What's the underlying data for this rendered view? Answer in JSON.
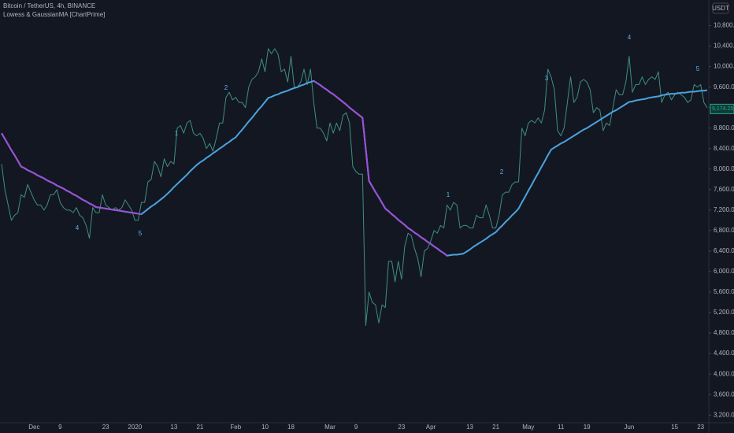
{
  "chart_data": {
    "type": "line",
    "currency": "USDT",
    "last_price": {
      "value": 9174.25,
      "label": "9,174.25"
    },
    "annotations": [
      "4",
      "5",
      "1",
      "2",
      "1",
      "2",
      "3",
      "4",
      "5"
    ],
    "categories": [
      null,
      null,
      null,
      null,
      null,
      null,
      null,
      null,
      null,
      null,
      "Dec",
      null,
      null,
      null,
      null,
      null,
      null,
      null,
      "9",
      null,
      null,
      null,
      null,
      null,
      null,
      null,
      null,
      null,
      null,
      null,
      null,
      null,
      "23",
      null,
      null,
      null,
      null,
      null,
      null,
      null,
      null,
      "2020",
      null,
      null,
      null,
      null,
      null,
      null,
      null,
      null,
      null,
      null,
      null,
      "13",
      null,
      null,
      null,
      null,
      null,
      null,
      null,
      "21",
      null,
      null,
      null,
      null,
      null,
      null,
      null,
      null,
      null,
      null,
      "Feb",
      null,
      null,
      null,
      null,
      null,
      null,
      null,
      null,
      "10",
      null,
      null,
      null,
      null,
      null,
      null,
      null,
      "18",
      null,
      null,
      null,
      null,
      null,
      null,
      null,
      null,
      null,
      null,
      null,
      "Mar",
      null,
      null,
      null,
      null,
      null,
      null,
      null,
      "9",
      null,
      null,
      null,
      null,
      null,
      null,
      null,
      null,
      null,
      null,
      null,
      null,
      null,
      "23",
      null,
      null,
      null,
      null,
      null,
      null,
      null,
      null,
      "Apr",
      null,
      null,
      null,
      null,
      null,
      null,
      null,
      null,
      null,
      null,
      null,
      "13",
      null,
      null,
      null,
      null,
      null,
      null,
      null,
      "21",
      null,
      null,
      null,
      null,
      null,
      null,
      null,
      null,
      null,
      "May",
      null,
      null,
      null,
      null,
      null,
      null,
      null,
      null,
      null,
      "11",
      null,
      null,
      null,
      null,
      null,
      null,
      null,
      "19",
      null,
      null,
      null,
      null,
      null,
      null,
      null,
      null,
      null,
      null,
      null,
      null,
      "Jun",
      null,
      null,
      null,
      null,
      null,
      null,
      null,
      null,
      null,
      null,
      null,
      null,
      null,
      "15",
      null,
      null,
      null,
      null,
      null,
      null,
      null,
      "23",
      null,
      null
    ],
    "series": [
      {
        "name": "Bitcoin / TetherUS, 4h, BINANCE",
        "color": "#3f8f80",
        "values": [
          8100,
          7600,
          7300,
          7000,
          7100,
          7150,
          7500,
          7450,
          7700,
          7550,
          7400,
          7300,
          7300,
          7200,
          7300,
          7500,
          7500,
          7600,
          7350,
          7250,
          7200,
          7200,
          7150,
          7250,
          7100,
          7050,
          6900,
          6650,
          7250,
          7150,
          7150,
          7500,
          7300,
          7250,
          7200,
          7250,
          7200,
          7250,
          7400,
          7300,
          7200,
          7000,
          7000,
          7350,
          7350,
          7750,
          7800,
          8150,
          8050,
          7850,
          8200,
          8050,
          8150,
          8100,
          8800,
          8850,
          8700,
          8900,
          8950,
          8700,
          8650,
          8700,
          8600,
          8400,
          8500,
          8350,
          8600,
          8900,
          8900,
          9400,
          9500,
          9350,
          9400,
          9300,
          9300,
          9200,
          9600,
          9750,
          9800,
          9900,
          10150,
          9900,
          10350,
          10250,
          10350,
          10250,
          9900,
          9950,
          9700,
          10200,
          9600,
          9600,
          9700,
          9950,
          9650,
          9950,
          9300,
          8800,
          8800,
          8700,
          8550,
          8900,
          8700,
          8900,
          8750,
          9050,
          9100,
          8900,
          8050,
          7950,
          7900,
          7900,
          4950,
          5600,
          5400,
          5350,
          5000,
          5350,
          5300,
          6200,
          6200,
          5800,
          6200,
          5850,
          6500,
          6750,
          6700,
          6450,
          6250,
          5900,
          6400,
          6450,
          6600,
          6800,
          6750,
          6900,
          6850,
          7300,
          7200,
          7350,
          7300,
          6850,
          6900,
          6900,
          6850,
          6850,
          7100,
          7050,
          7050,
          7300,
          7100,
          6850,
          6850,
          7100,
          7500,
          7550,
          7550,
          7700,
          7750,
          7750,
          8800,
          8650,
          8900,
          8950,
          8900,
          9000,
          8900,
          9150,
          9950,
          9800,
          9550,
          8750,
          8650,
          8800,
          9300,
          9800,
          9300,
          9400,
          9700,
          9750,
          9700,
          9550,
          9100,
          9200,
          9150,
          8750,
          8900,
          8850,
          9200,
          9550,
          9450,
          9450,
          9700,
          10200,
          9500,
          9650,
          9650,
          9800,
          9650,
          9750,
          9800,
          9750,
          9900,
          9300,
          9450,
          9500,
          9350,
          9450,
          9500,
          9450,
          9400,
          9300,
          9350,
          9650,
          9600,
          9650,
          9300,
          9200
        ]
      },
      {
        "name": "Lowess & GaussianMA [ChartPrime]",
        "color": "#4aa3df",
        "down_color": "#9f4fd8",
        "values": [
          8700,
          8590,
          8480,
          8370,
          8270,
          8160,
          8050,
          8020,
          7980,
          7950,
          7920,
          7880,
          7850,
          7820,
          7780,
          7750,
          7720,
          7680,
          7650,
          7620,
          7580,
          7550,
          7510,
          7480,
          7440,
          7400,
          7370,
          7330,
          7300,
          7260,
          7250,
          7240,
          7230,
          7220,
          7210,
          7200,
          7190,
          7180,
          7170,
          7160,
          7150,
          7140,
          7130,
          7120,
          7170,
          7220,
          7270,
          7310,
          7360,
          7410,
          7460,
          7520,
          7580,
          7650,
          7710,
          7770,
          7830,
          7890,
          7960,
          8020,
          8080,
          8130,
          8170,
          8220,
          8260,
          8310,
          8350,
          8400,
          8440,
          8490,
          8530,
          8580,
          8620,
          8700,
          8770,
          8850,
          8930,
          9000,
          9080,
          9160,
          9230,
          9310,
          9390,
          9410,
          9440,
          9460,
          9490,
          9510,
          9530,
          9560,
          9580,
          9600,
          9630,
          9650,
          9680,
          9700,
          9720,
          9680,
          9640,
          9590,
          9550,
          9500,
          9460,
          9410,
          9360,
          9310,
          9260,
          9200,
          9150,
          9100,
          9050,
          9000,
          8390,
          7770,
          7660,
          7550,
          7450,
          7340,
          7230,
          7180,
          7120,
          7070,
          7010,
          6960,
          6910,
          6850,
          6810,
          6760,
          6720,
          6670,
          6630,
          6580,
          6540,
          6490,
          6450,
          6400,
          6360,
          6310,
          6320,
          6330,
          6330,
          6340,
          6350,
          6390,
          6430,
          6480,
          6520,
          6560,
          6600,
          6640,
          6690,
          6730,
          6770,
          6840,
          6900,
          6970,
          7030,
          7100,
          7160,
          7230,
          7350,
          7460,
          7580,
          7690,
          7810,
          7920,
          8040,
          8150,
          8270,
          8380,
          8420,
          8460,
          8500,
          8530,
          8570,
          8610,
          8650,
          8690,
          8730,
          8770,
          8800,
          8840,
          8880,
          8920,
          8960,
          9000,
          9040,
          9080,
          9120,
          9150,
          9190,
          9230,
          9270,
          9310,
          9320,
          9340,
          9350,
          9360,
          9370,
          9390,
          9400,
          9410,
          9420,
          9440,
          9450,
          9460,
          9470,
          9470,
          9480,
          9490,
          9490,
          9500,
          9510,
          9510,
          9520,
          9530,
          9530,
          9540
        ]
      }
    ],
    "ylim": [
      3050,
      11300
    ],
    "yticks": [
      {
        "value": 3200,
        "label": "3,200.00"
      },
      {
        "value": 3600,
        "label": "3,600.00"
      },
      {
        "value": 4000,
        "label": "4,000.00"
      },
      {
        "value": 4400,
        "label": "4,400.00"
      },
      {
        "value": 4800,
        "label": "4,800.00"
      },
      {
        "value": 5200,
        "label": "5,200.00"
      },
      {
        "value": 5600,
        "label": "5,600.00"
      },
      {
        "value": 6000,
        "label": "6,000.00"
      },
      {
        "value": 6400,
        "label": "6,400.00"
      },
      {
        "value": 6800,
        "label": "6,800.00"
      },
      {
        "value": 7200,
        "label": "7,200.00"
      },
      {
        "value": 7600,
        "label": "7,600.00"
      },
      {
        "value": 8000,
        "label": "8,000.00"
      },
      {
        "value": 8400,
        "label": "8,400.00"
      },
      {
        "value": 8800,
        "label": "8,800.00"
      },
      {
        "value": 9200,
        "label": "9,200.00"
      },
      {
        "value": 9600,
        "label": "9,600.00"
      },
      {
        "value": 10000,
        "label": "10,000.00"
      },
      {
        "value": 10400,
        "label": "10,400.00"
      },
      {
        "value": 10800,
        "label": "10,800.00"
      }
    ],
    "grid": false
  }
}
